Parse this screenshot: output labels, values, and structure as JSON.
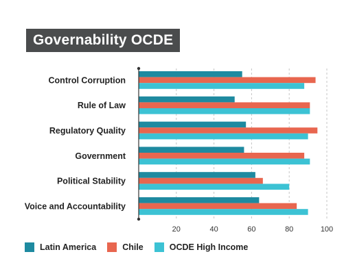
{
  "title": "Governability OCDE",
  "chart_data": {
    "type": "bar",
    "orientation": "horizontal",
    "title": "Governability OCDE",
    "categories": [
      "Control Corruption",
      "Rule of Law",
      "Regulatory Quality",
      "Government",
      "Political Stability",
      "Voice and Accountability"
    ],
    "series": [
      {
        "name": "Latin America",
        "color": "#1e8aa0",
        "values": [
          55,
          51,
          57,
          56,
          62,
          64
        ]
      },
      {
        "name": "Chile",
        "color": "#e8664f",
        "values": [
          94,
          91,
          95,
          88,
          66,
          84
        ]
      },
      {
        "name": "OCDE High Income",
        "color": "#3cc2d4",
        "values": [
          88,
          91,
          90,
          91,
          80,
          90
        ]
      }
    ],
    "xlim": [
      0,
      100
    ],
    "xticks": [
      20,
      40,
      60,
      80,
      100
    ],
    "grid": "vertical-dashed",
    "legend": "bottom"
  }
}
